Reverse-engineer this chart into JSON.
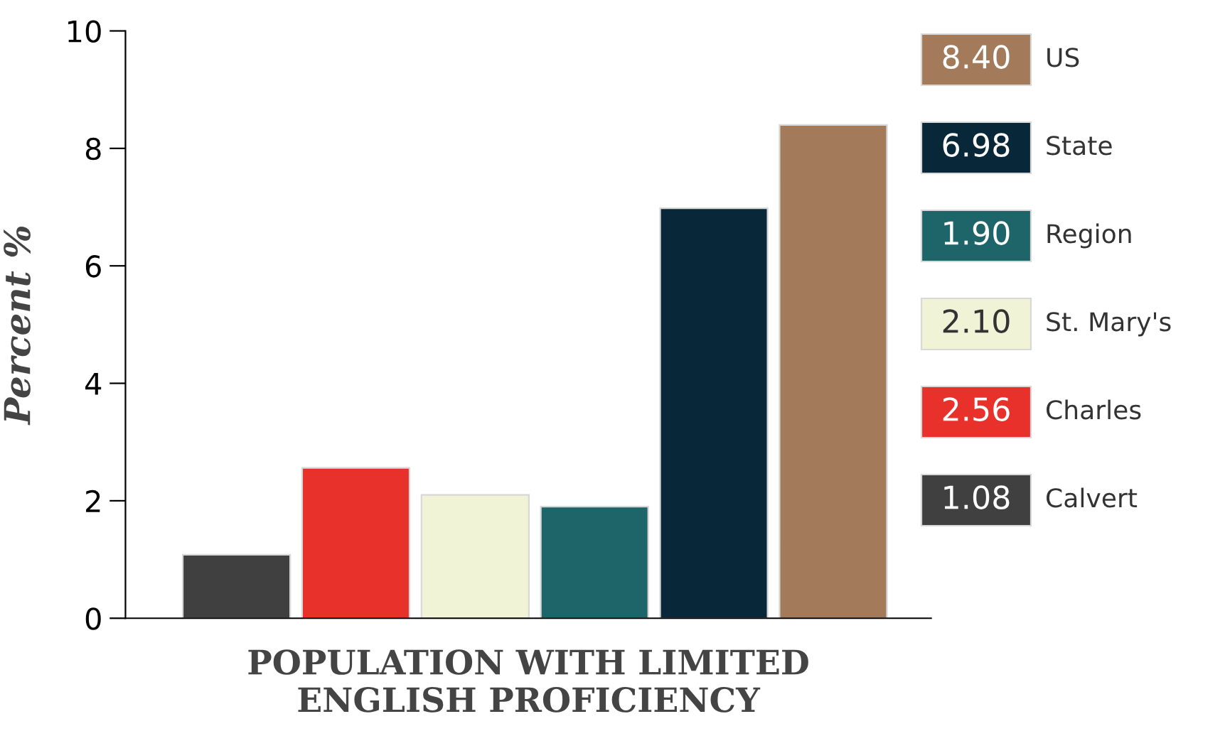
{
  "chart_data": {
    "type": "bar",
    "xlabel": "POPULATION WITH LIMITED\nENGLISH PROFICIENCY",
    "ylabel": "Percent %",
    "categories": [
      null,
      null,
      null,
      null,
      null,
      null
    ],
    "series": [
      {
        "name": "Calvert",
        "color": "#404040",
        "values": [
          1.08,
          null,
          null,
          null,
          null,
          null
        ]
      },
      {
        "name": "Charles",
        "color": "#e8312a",
        "values": [
          null,
          2.56,
          null,
          null,
          null,
          null
        ]
      },
      {
        "name": "St. Mary's",
        "color": "#f0f3d5",
        "values": [
          null,
          null,
          2.1,
          null,
          null,
          null
        ]
      },
      {
        "name": "Region",
        "color": "#1e6569",
        "values": [
          null,
          null,
          null,
          1.9,
          null,
          null
        ]
      },
      {
        "name": "State",
        "color": "#08283a",
        "values": [
          null,
          null,
          null,
          null,
          6.98,
          null
        ]
      },
      {
        "name": "US",
        "color": "#a37b5a",
        "values": [
          null,
          null,
          null,
          null,
          null,
          8.4
        ]
      }
    ],
    "annotations": [
      "1.08",
      "2.56",
      "2.10",
      "1.90",
      "6.98",
      "8.40"
    ],
    "ylim": [
      0,
      10
    ],
    "yticks": [
      0,
      2,
      4,
      6,
      8,
      10
    ],
    "grid": false,
    "legend": "right"
  }
}
